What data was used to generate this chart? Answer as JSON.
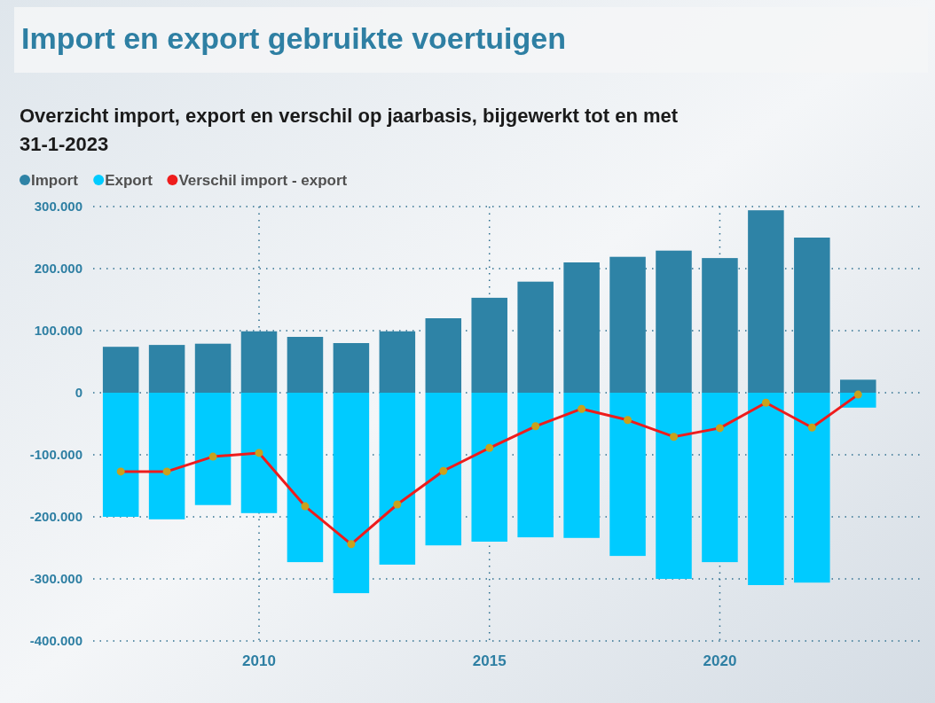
{
  "chart_data": {
    "type": "bar",
    "title": "Import en export gebruikte voertuigen",
    "subtitle": "Overzicht import, export en verschil op jaarbasis, bijgewerkt tot en met 31-1-2023",
    "x": [
      2007,
      2008,
      2009,
      2010,
      2011,
      2012,
      2013,
      2014,
      2015,
      2016,
      2017,
      2018,
      2019,
      2020,
      2021,
      2022,
      2023
    ],
    "series": [
      {
        "name": "Import",
        "color": "#2e83a6",
        "values": [
          74000,
          77000,
          79000,
          99000,
          90000,
          80000,
          99000,
          120000,
          153000,
          179000,
          210000,
          219000,
          229000,
          217000,
          294000,
          250000,
          21000
        ]
      },
      {
        "name": "Export",
        "color": "#00cbff",
        "values": [
          -200000,
          -204000,
          -181000,
          -194000,
          -273000,
          -323000,
          -277000,
          -246000,
          -240000,
          -233000,
          -234000,
          -263000,
          -300000,
          -273000,
          -310000,
          -306000,
          -24000
        ]
      },
      {
        "name": "Verschil import - export",
        "type": "line",
        "color": "#ee1c1c",
        "marker": "circle",
        "values": [
          -127000,
          -127000,
          -103000,
          -97000,
          -183000,
          -244000,
          -180000,
          -126000,
          -89000,
          -54000,
          -26000,
          -44000,
          -71000,
          -57000,
          -16000,
          -56000,
          -3000
        ]
      }
    ],
    "xlim": [
      2006.4,
      2024.4
    ],
    "xticks": [
      2010,
      2015,
      2020
    ],
    "ylim": [
      -400000,
      300000
    ],
    "yticks": [
      {
        "value": -400000,
        "label": "-400.000"
      },
      {
        "value": -300000,
        "label": "-300.000"
      },
      {
        "value": -200000,
        "label": "-200.000"
      },
      {
        "value": -100000,
        "label": "-100.000"
      },
      {
        "value": 0,
        "label": "0"
      },
      {
        "value": 100000,
        "label": "100.000"
      },
      {
        "value": 200000,
        "label": "200.000"
      },
      {
        "value": 300000,
        "label": "300.000"
      }
    ],
    "stacked": true,
    "grid": true,
    "legend": "top left"
  }
}
